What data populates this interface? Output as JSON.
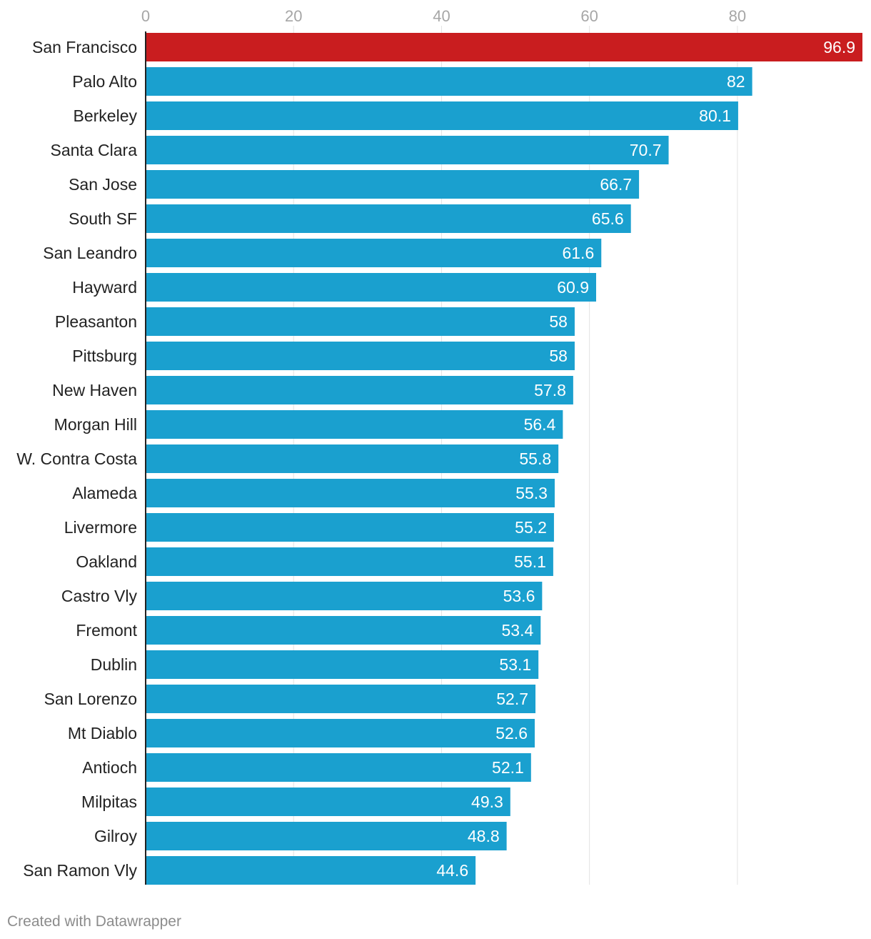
{
  "chart_data": {
    "type": "bar",
    "orientation": "horizontal",
    "title": "",
    "xlabel": "",
    "ylabel": "",
    "xlim": [
      0,
      96.9
    ],
    "ticks": [
      0,
      20,
      40,
      60,
      80
    ],
    "grid": true,
    "highlight_color": "#c91d1f",
    "bar_color": "#1aa0cf",
    "highlight": [
      "San Francisco"
    ],
    "categories": [
      "San Francisco",
      "Palo Alto",
      "Berkeley",
      "Santa Clara",
      "San Jose",
      "South SF",
      "San Leandro",
      "Hayward",
      "Pleasanton",
      "Pittsburg",
      "New Haven",
      "Morgan Hill",
      "W. Contra Costa",
      "Alameda",
      "Livermore",
      "Oakland",
      "Castro Vly",
      "Fremont",
      "Dublin",
      "San Lorenzo",
      "Mt Diablo",
      "Antioch",
      "Milpitas",
      "Gilroy",
      "San Ramon Vly"
    ],
    "values": [
      96.9,
      82,
      80.1,
      70.7,
      66.7,
      65.6,
      61.6,
      60.9,
      58,
      58,
      57.8,
      56.4,
      55.8,
      55.3,
      55.2,
      55.1,
      53.6,
      53.4,
      53.1,
      52.7,
      52.6,
      52.1,
      49.3,
      48.8,
      44.6
    ]
  },
  "footer": {
    "credit": "Created with Datawrapper"
  }
}
